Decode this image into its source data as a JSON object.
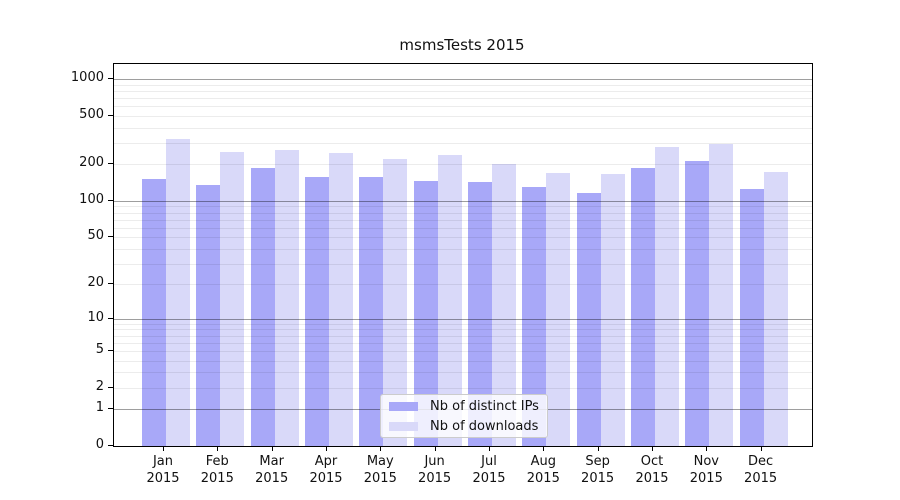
{
  "title": "msmsTests 2015",
  "colors": {
    "distinct_ips": "#a8a8f8",
    "downloads": "#d9d9f9",
    "axis": "#000000",
    "major_grid_rgba": "rgba(0,0,0,0.38)",
    "minor_grid_rgba": "rgba(0,0,0,0.075)",
    "legend_border": "#cccccc"
  },
  "legend": {
    "items": [
      {
        "label": "Nb of distinct IPs",
        "color_key": "distinct_ips"
      },
      {
        "label": "Nb of downloads",
        "color_key": "downloads"
      }
    ]
  },
  "chart_data": {
    "type": "bar",
    "title": "msmsTests 2015",
    "xlabel": "",
    "ylabel": "",
    "categories": [
      "Jan 2015",
      "Feb 2015",
      "Mar 2015",
      "Apr 2015",
      "May 2015",
      "Jun 2015",
      "Jul 2015",
      "Aug 2015",
      "Sep 2015",
      "Oct 2015",
      "Nov 2015",
      "Dec 2015"
    ],
    "month_labels": [
      "Jan",
      "Feb",
      "Mar",
      "Apr",
      "May",
      "Jun",
      "Jul",
      "Aug",
      "Sep",
      "Oct",
      "Nov",
      "Dec"
    ],
    "year_label": "2015",
    "series": [
      {
        "name": "Nb of distinct IPs",
        "color_key": "distinct_ips",
        "values": [
          152,
          134,
          187,
          158,
          157,
          147,
          144,
          130,
          117,
          186,
          213,
          125
        ]
      },
      {
        "name": "Nb of downloads",
        "color_key": "downloads",
        "values": [
          325,
          252,
          262,
          250,
          222,
          237,
          202,
          171,
          166,
          277,
          292,
          174
        ]
      }
    ],
    "y_axis": {
      "scale": "log1p",
      "tick_values": [
        0,
        1,
        2,
        5,
        10,
        20,
        50,
        100,
        200,
        500,
        1000
      ],
      "tick_labels": [
        "0",
        "1",
        "2",
        "5",
        "10",
        "20",
        "50",
        "100",
        "200",
        "500",
        "1000"
      ],
      "major_gridline_values": [
        1,
        10,
        100,
        1000
      ],
      "ylim": [
        0,
        1330
      ],
      "grid": true
    },
    "legend_position": "lower center"
  }
}
